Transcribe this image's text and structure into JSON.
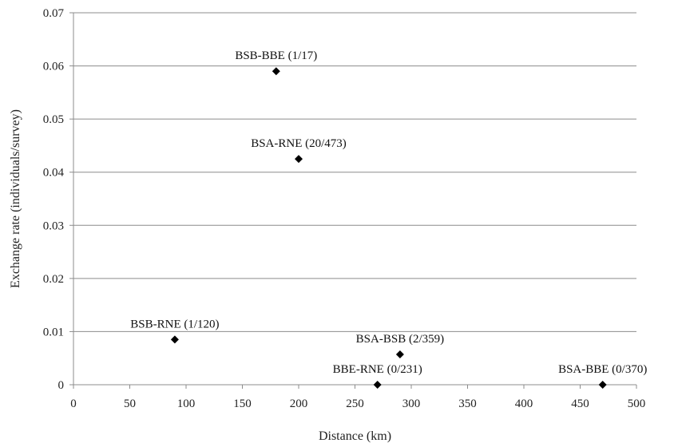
{
  "chart_data": {
    "type": "scatter",
    "title": "",
    "xlabel": "Distance  (km)",
    "ylabel": "Exchange  rate  (individuals/survey)",
    "xlim": [
      0,
      500
    ],
    "ylim": [
      0,
      0.07
    ],
    "xticks": [
      0,
      50,
      100,
      150,
      200,
      250,
      300,
      350,
      400,
      450,
      500
    ],
    "yticks": [
      0,
      0.01,
      0.02,
      0.03,
      0.04,
      0.05,
      0.06,
      0.07
    ],
    "xtick_labels": [
      "0",
      "50",
      "100",
      "150",
      "200",
      "250",
      "300",
      "350",
      "400",
      "450",
      "500"
    ],
    "ytick_labels": [
      "0",
      "0.01",
      "0.02",
      "0.03",
      "0.04",
      "0.05",
      "0.06",
      "0.07"
    ],
    "grid": "horizontal",
    "marker": "diamond",
    "marker_color": "#000000",
    "points": [
      {
        "label": "BSB-RNE (1/120)",
        "x": 90,
        "y": 0.0085
      },
      {
        "label": "BSB-BBE (1/17)",
        "x": 180,
        "y": 0.059
      },
      {
        "label": "BSA-RNE (20/473)",
        "x": 200,
        "y": 0.0425
      },
      {
        "label": "BBE-RNE (0/231)",
        "x": 270,
        "y": 0.0
      },
      {
        "label": "BSA-BSB (2/359)",
        "x": 290,
        "y": 0.0057
      },
      {
        "label": "BSA-BBE (0/370)",
        "x": 470,
        "y": 0.0
      }
    ]
  }
}
